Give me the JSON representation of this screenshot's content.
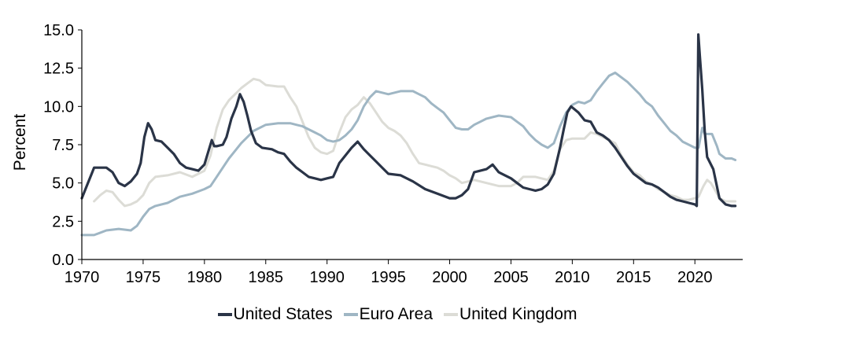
{
  "chart_data": {
    "type": "line",
    "ylabel": "Percent",
    "xlabel": "",
    "xlim": [
      1970,
      2023.9
    ],
    "ylim": [
      0,
      15
    ],
    "x_ticks": [
      "1970",
      "1975",
      "1980",
      "1985",
      "1990",
      "1995",
      "2000",
      "2005",
      "2010",
      "2015",
      "2020"
    ],
    "y_ticks": [
      "0.0",
      "2.5",
      "5.0",
      "7.5",
      "10.0",
      "12.5",
      "15.0"
    ],
    "legend_position": "bottom-center",
    "grid": false,
    "series": [
      {
        "name": "United States",
        "color": "#2a3447",
        "points": [
          [
            1970.0,
            4.0
          ],
          [
            1970.4,
            4.8
          ],
          [
            1970.8,
            5.6
          ],
          [
            1971.0,
            6.0
          ],
          [
            1971.5,
            6.0
          ],
          [
            1972.0,
            6.0
          ],
          [
            1972.5,
            5.7
          ],
          [
            1973.0,
            5.0
          ],
          [
            1973.5,
            4.8
          ],
          [
            1974.0,
            5.1
          ],
          [
            1974.5,
            5.6
          ],
          [
            1974.8,
            6.3
          ],
          [
            1975.1,
            8.0
          ],
          [
            1975.4,
            8.9
          ],
          [
            1975.7,
            8.5
          ],
          [
            1976.0,
            7.8
          ],
          [
            1976.5,
            7.7
          ],
          [
            1977.0,
            7.3
          ],
          [
            1977.5,
            6.9
          ],
          [
            1978.0,
            6.3
          ],
          [
            1978.5,
            6.0
          ],
          [
            1979.0,
            5.9
          ],
          [
            1979.5,
            5.8
          ],
          [
            1980.0,
            6.2
          ],
          [
            1980.3,
            7.0
          ],
          [
            1980.6,
            7.8
          ],
          [
            1980.8,
            7.4
          ],
          [
            1981.0,
            7.4
          ],
          [
            1981.5,
            7.5
          ],
          [
            1981.8,
            8.0
          ],
          [
            1982.2,
            9.2
          ],
          [
            1982.6,
            10.0
          ],
          [
            1982.9,
            10.8
          ],
          [
            1983.2,
            10.3
          ],
          [
            1983.5,
            9.4
          ],
          [
            1983.8,
            8.4
          ],
          [
            1984.2,
            7.6
          ],
          [
            1984.7,
            7.3
          ],
          [
            1985.5,
            7.2
          ],
          [
            1986.0,
            7.0
          ],
          [
            1986.5,
            6.9
          ],
          [
            1987.0,
            6.4
          ],
          [
            1987.5,
            6.0
          ],
          [
            1988.0,
            5.7
          ],
          [
            1988.5,
            5.4
          ],
          [
            1989.0,
            5.3
          ],
          [
            1989.5,
            5.2
          ],
          [
            1990.0,
            5.3
          ],
          [
            1990.5,
            5.4
          ],
          [
            1991.0,
            6.3
          ],
          [
            1991.5,
            6.8
          ],
          [
            1992.0,
            7.3
          ],
          [
            1992.5,
            7.7
          ],
          [
            1993.0,
            7.2
          ],
          [
            1993.5,
            6.8
          ],
          [
            1994.0,
            6.4
          ],
          [
            1994.5,
            6.0
          ],
          [
            1995.0,
            5.6
          ],
          [
            1996.0,
            5.5
          ],
          [
            1997.0,
            5.1
          ],
          [
            1998.0,
            4.6
          ],
          [
            1999.0,
            4.3
          ],
          [
            2000.0,
            4.0
          ],
          [
            2000.5,
            4.0
          ],
          [
            2001.0,
            4.2
          ],
          [
            2001.5,
            4.6
          ],
          [
            2002.0,
            5.7
          ],
          [
            2002.5,
            5.8
          ],
          [
            2003.0,
            5.9
          ],
          [
            2003.5,
            6.2
          ],
          [
            2004.0,
            5.7
          ],
          [
            2004.5,
            5.5
          ],
          [
            2005.0,
            5.3
          ],
          [
            2005.5,
            5.0
          ],
          [
            2006.0,
            4.7
          ],
          [
            2006.5,
            4.6
          ],
          [
            2007.0,
            4.5
          ],
          [
            2007.5,
            4.6
          ],
          [
            2008.0,
            4.9
          ],
          [
            2008.5,
            5.6
          ],
          [
            2009.0,
            7.3
          ],
          [
            2009.3,
            8.5
          ],
          [
            2009.6,
            9.6
          ],
          [
            2009.9,
            10.0
          ],
          [
            2010.5,
            9.6
          ],
          [
            2011.0,
            9.1
          ],
          [
            2011.5,
            9.0
          ],
          [
            2012.0,
            8.3
          ],
          [
            2012.5,
            8.1
          ],
          [
            2013.0,
            7.8
          ],
          [
            2013.5,
            7.3
          ],
          [
            2014.0,
            6.7
          ],
          [
            2014.5,
            6.1
          ],
          [
            2015.0,
            5.6
          ],
          [
            2015.5,
            5.3
          ],
          [
            2016.0,
            5.0
          ],
          [
            2016.5,
            4.9
          ],
          [
            2017.0,
            4.7
          ],
          [
            2017.5,
            4.4
          ],
          [
            2018.0,
            4.1
          ],
          [
            2018.5,
            3.9
          ],
          [
            2019.0,
            3.8
          ],
          [
            2019.5,
            3.7
          ],
          [
            2020.0,
            3.6
          ],
          [
            2020.15,
            3.5
          ],
          [
            2020.28,
            14.7
          ],
          [
            2020.4,
            13.3
          ],
          [
            2020.6,
            11.1
          ],
          [
            2020.8,
            8.4
          ],
          [
            2021.0,
            6.7
          ],
          [
            2021.5,
            5.9
          ],
          [
            2022.0,
            4.0
          ],
          [
            2022.5,
            3.6
          ],
          [
            2023.0,
            3.5
          ],
          [
            2023.3,
            3.5
          ]
        ]
      },
      {
        "name": "Euro Area",
        "color": "#9fb6c4",
        "points": [
          [
            1970.0,
            1.6
          ],
          [
            1971.0,
            1.6
          ],
          [
            1972.0,
            1.9
          ],
          [
            1973.0,
            2.0
          ],
          [
            1974.0,
            1.9
          ],
          [
            1974.5,
            2.2
          ],
          [
            1975.0,
            2.8
          ],
          [
            1975.5,
            3.3
          ],
          [
            1976.0,
            3.5
          ],
          [
            1977.0,
            3.7
          ],
          [
            1978.0,
            4.1
          ],
          [
            1979.0,
            4.3
          ],
          [
            1980.0,
            4.6
          ],
          [
            1980.5,
            4.8
          ],
          [
            1981.0,
            5.4
          ],
          [
            1981.5,
            6.0
          ],
          [
            1982.0,
            6.6
          ],
          [
            1982.5,
            7.1
          ],
          [
            1983.0,
            7.6
          ],
          [
            1983.5,
            8.0
          ],
          [
            1984.0,
            8.4
          ],
          [
            1984.5,
            8.6
          ],
          [
            1985.0,
            8.8
          ],
          [
            1986.0,
            8.9
          ],
          [
            1987.0,
            8.9
          ],
          [
            1987.5,
            8.8
          ],
          [
            1988.0,
            8.7
          ],
          [
            1988.5,
            8.5
          ],
          [
            1989.0,
            8.3
          ],
          [
            1989.5,
            8.1
          ],
          [
            1990.0,
            7.8
          ],
          [
            1990.5,
            7.7
          ],
          [
            1991.0,
            7.8
          ],
          [
            1991.5,
            8.1
          ],
          [
            1992.0,
            8.5
          ],
          [
            1992.5,
            9.1
          ],
          [
            1993.0,
            10.0
          ],
          [
            1993.5,
            10.6
          ],
          [
            1994.0,
            11.0
          ],
          [
            1995.0,
            10.8
          ],
          [
            1996.0,
            11.0
          ],
          [
            1997.0,
            11.0
          ],
          [
            1997.5,
            10.8
          ],
          [
            1998.0,
            10.6
          ],
          [
            1998.5,
            10.2
          ],
          [
            1999.0,
            9.9
          ],
          [
            1999.5,
            9.6
          ],
          [
            2000.0,
            9.1
          ],
          [
            2000.5,
            8.6
          ],
          [
            2001.0,
            8.5
          ],
          [
            2001.5,
            8.5
          ],
          [
            2002.0,
            8.8
          ],
          [
            2002.5,
            9.0
          ],
          [
            2003.0,
            9.2
          ],
          [
            2004.0,
            9.4
          ],
          [
            2005.0,
            9.3
          ],
          [
            2005.5,
            9.0
          ],
          [
            2006.0,
            8.7
          ],
          [
            2006.5,
            8.2
          ],
          [
            2007.0,
            7.8
          ],
          [
            2007.5,
            7.5
          ],
          [
            2008.0,
            7.3
          ],
          [
            2008.5,
            7.6
          ],
          [
            2009.0,
            8.7
          ],
          [
            2009.5,
            9.6
          ],
          [
            2010.0,
            10.1
          ],
          [
            2010.5,
            10.3
          ],
          [
            2011.0,
            10.2
          ],
          [
            2011.5,
            10.4
          ],
          [
            2012.0,
            11.0
          ],
          [
            2012.5,
            11.5
          ],
          [
            2013.0,
            12.0
          ],
          [
            2013.5,
            12.2
          ],
          [
            2014.0,
            11.9
          ],
          [
            2014.5,
            11.6
          ],
          [
            2015.0,
            11.2
          ],
          [
            2015.5,
            10.8
          ],
          [
            2016.0,
            10.3
          ],
          [
            2016.5,
            10.0
          ],
          [
            2017.0,
            9.4
          ],
          [
            2017.5,
            8.9
          ],
          [
            2018.0,
            8.4
          ],
          [
            2018.5,
            8.1
          ],
          [
            2019.0,
            7.7
          ],
          [
            2019.5,
            7.5
          ],
          [
            2020.0,
            7.3
          ],
          [
            2020.3,
            7.3
          ],
          [
            2020.6,
            8.6
          ],
          [
            2020.8,
            8.2
          ],
          [
            2021.0,
            8.2
          ],
          [
            2021.4,
            8.2
          ],
          [
            2021.8,
            7.4
          ],
          [
            2022.0,
            6.9
          ],
          [
            2022.5,
            6.6
          ],
          [
            2023.0,
            6.6
          ],
          [
            2023.3,
            6.5
          ]
        ]
      },
      {
        "name": "United Kingdom",
        "color": "#dcdcd6",
        "points": [
          [
            1971.0,
            3.8
          ],
          [
            1971.5,
            4.2
          ],
          [
            1972.0,
            4.5
          ],
          [
            1972.5,
            4.4
          ],
          [
            1973.0,
            3.9
          ],
          [
            1973.5,
            3.5
          ],
          [
            1974.0,
            3.6
          ],
          [
            1974.5,
            3.8
          ],
          [
            1975.0,
            4.2
          ],
          [
            1975.5,
            5.0
          ],
          [
            1976.0,
            5.4
          ],
          [
            1977.0,
            5.5
          ],
          [
            1978.0,
            5.7
          ],
          [
            1979.0,
            5.4
          ],
          [
            1980.0,
            5.8
          ],
          [
            1980.5,
            6.8
          ],
          [
            1981.0,
            8.6
          ],
          [
            1981.5,
            9.8
          ],
          [
            1982.0,
            10.4
          ],
          [
            1982.5,
            10.8
          ],
          [
            1983.0,
            11.2
          ],
          [
            1983.5,
            11.5
          ],
          [
            1984.0,
            11.8
          ],
          [
            1984.5,
            11.7
          ],
          [
            1985.0,
            11.4
          ],
          [
            1986.0,
            11.3
          ],
          [
            1986.5,
            11.3
          ],
          [
            1987.0,
            10.6
          ],
          [
            1987.5,
            10.0
          ],
          [
            1988.0,
            9.0
          ],
          [
            1988.5,
            8.0
          ],
          [
            1989.0,
            7.3
          ],
          [
            1989.5,
            7.0
          ],
          [
            1990.0,
            6.9
          ],
          [
            1990.5,
            7.1
          ],
          [
            1991.0,
            8.3
          ],
          [
            1991.5,
            9.3
          ],
          [
            1992.0,
            9.8
          ],
          [
            1992.5,
            10.1
          ],
          [
            1993.0,
            10.6
          ],
          [
            1993.5,
            10.2
          ],
          [
            1994.0,
            9.6
          ],
          [
            1994.5,
            9.0
          ],
          [
            1995.0,
            8.6
          ],
          [
            1995.5,
            8.4
          ],
          [
            1996.0,
            8.1
          ],
          [
            1996.5,
            7.6
          ],
          [
            1997.0,
            6.9
          ],
          [
            1997.5,
            6.3
          ],
          [
            1998.0,
            6.2
          ],
          [
            1998.5,
            6.1
          ],
          [
            1999.0,
            6.0
          ],
          [
            1999.5,
            5.8
          ],
          [
            2000.0,
            5.5
          ],
          [
            2000.5,
            5.3
          ],
          [
            2001.0,
            5.0
          ],
          [
            2002.0,
            5.2
          ],
          [
            2003.0,
            5.0
          ],
          [
            2004.0,
            4.8
          ],
          [
            2005.0,
            4.8
          ],
          [
            2005.5,
            5.0
          ],
          [
            2006.0,
            5.4
          ],
          [
            2007.0,
            5.4
          ],
          [
            2008.0,
            5.2
          ],
          [
            2008.5,
            5.8
          ],
          [
            2009.0,
            7.2
          ],
          [
            2009.5,
            7.8
          ],
          [
            2010.0,
            7.9
          ],
          [
            2011.0,
            7.9
          ],
          [
            2011.5,
            8.3
          ],
          [
            2012.0,
            8.2
          ],
          [
            2012.5,
            8.0
          ],
          [
            2013.0,
            7.8
          ],
          [
            2013.5,
            7.6
          ],
          [
            2014.0,
            6.8
          ],
          [
            2014.5,
            6.2
          ],
          [
            2015.0,
            5.7
          ],
          [
            2015.5,
            5.5
          ],
          [
            2016.0,
            5.1
          ],
          [
            2016.5,
            4.9
          ],
          [
            2017.0,
            4.6
          ],
          [
            2017.5,
            4.4
          ],
          [
            2018.0,
            4.2
          ],
          [
            2018.5,
            4.1
          ],
          [
            2019.0,
            3.9
          ],
          [
            2019.5,
            3.9
          ],
          [
            2020.0,
            4.0
          ],
          [
            2020.3,
            4.1
          ],
          [
            2020.7,
            4.8
          ],
          [
            2021.0,
            5.2
          ],
          [
            2021.3,
            5.0
          ],
          [
            2021.6,
            4.6
          ],
          [
            2022.0,
            4.0
          ],
          [
            2022.5,
            3.8
          ],
          [
            2023.0,
            3.8
          ],
          [
            2023.3,
            3.8
          ]
        ]
      }
    ]
  }
}
